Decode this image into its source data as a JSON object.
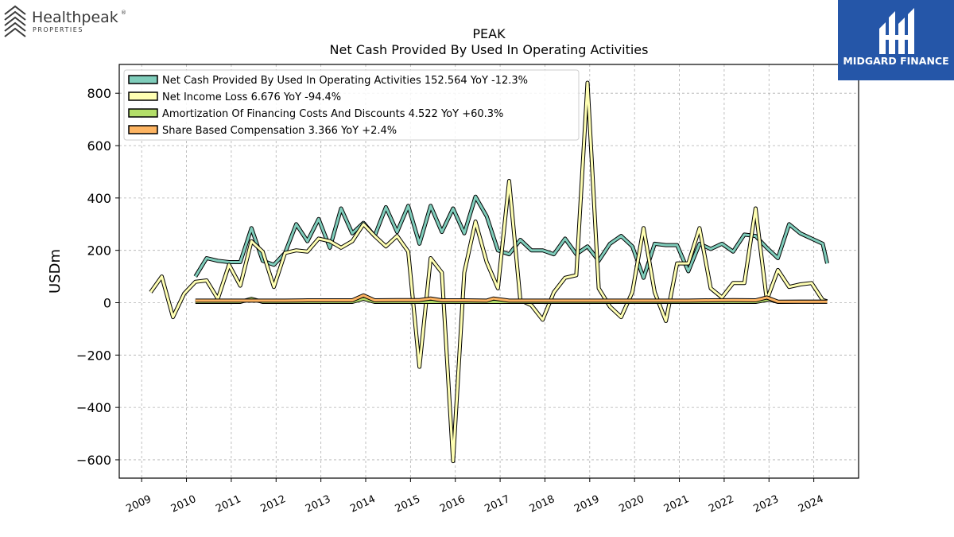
{
  "branding": {
    "left_logo_name": "Healthpeak",
    "left_logo_registered": "®",
    "left_logo_sub": "PROPERTIES",
    "right_logo_name": "MIDGARD FINANCE",
    "right_logo_bg": "#2556a8"
  },
  "chart_data": {
    "type": "line",
    "title": "PEAK",
    "subtitle": "Net Cash Provided By Used In Operating Activities",
    "ylabel": "USDm",
    "xlabel": "",
    "ylim": [
      -670,
      910
    ],
    "xlim": [
      2008.5,
      2025.0
    ],
    "yticks": [
      -600,
      -400,
      -200,
      0,
      200,
      400,
      600,
      800
    ],
    "ytick_labels": [
      "−600",
      "−400",
      "−200",
      "0",
      "200",
      "400",
      "600",
      "800"
    ],
    "xticks": [
      2009,
      2010,
      2011,
      2012,
      2013,
      2014,
      2015,
      2016,
      2017,
      2018,
      2019,
      2020,
      2021,
      2022,
      2023,
      2024
    ],
    "xtick_labels": [
      "2009",
      "2010",
      "2011",
      "2012",
      "2013",
      "2014",
      "2015",
      "2016",
      "2017",
      "2018",
      "2019",
      "2020",
      "2021",
      "2022",
      "2023",
      "2024"
    ],
    "grid": true,
    "legend_position": "top-left",
    "series": [
      {
        "name": "Net Cash Provided By Used In Operating Activities",
        "legend": "Net Cash Provided By Used In Operating Activities  152.564 YoY -12.3%",
        "color": "#7fcdbb",
        "x": [
          2010.2,
          2010.45,
          2010.7,
          2010.95,
          2011.2,
          2011.45,
          2011.7,
          2011.95,
          2012.2,
          2012.45,
          2012.7,
          2012.95,
          2013.2,
          2013.45,
          2013.7,
          2013.95,
          2014.2,
          2014.45,
          2014.7,
          2014.95,
          2015.2,
          2015.45,
          2015.7,
          2015.95,
          2016.2,
          2016.45,
          2016.7,
          2016.95,
          2017.2,
          2017.45,
          2017.7,
          2017.95,
          2018.2,
          2018.45,
          2018.7,
          2018.95,
          2019.2,
          2019.45,
          2019.7,
          2019.95,
          2020.2,
          2020.45,
          2020.7,
          2020.95,
          2021.2,
          2021.45,
          2021.7,
          2021.95,
          2022.2,
          2022.45,
          2022.7,
          2022.95,
          2023.2,
          2023.45,
          2023.7,
          2023.95,
          2024.2,
          2024.3
        ],
        "values": [
          100,
          170,
          160,
          155,
          155,
          285,
          160,
          145,
          190,
          300,
          235,
          320,
          210,
          360,
          265,
          305,
          255,
          365,
          270,
          370,
          225,
          370,
          270,
          360,
          265,
          405,
          330,
          200,
          185,
          240,
          200,
          200,
          185,
          245,
          185,
          215,
          160,
          225,
          255,
          215,
          95,
          225,
          220,
          220,
          120,
          225,
          205,
          225,
          195,
          260,
          255,
          210,
          170,
          300,
          265,
          245,
          225,
          150
        ]
      },
      {
        "name": "Net Income Loss",
        "legend": "Net Income Loss  6.676 YoY -94.4%",
        "color": "#ffffb3",
        "x": [
          2009.2,
          2009.45,
          2009.7,
          2009.95,
          2010.2,
          2010.45,
          2010.7,
          2010.95,
          2011.2,
          2011.45,
          2011.7,
          2011.95,
          2012.2,
          2012.45,
          2012.7,
          2012.95,
          2013.2,
          2013.45,
          2013.7,
          2013.95,
          2014.2,
          2014.45,
          2014.7,
          2014.95,
          2015.2,
          2015.45,
          2015.7,
          2015.95,
          2016.2,
          2016.45,
          2016.7,
          2016.95,
          2017.2,
          2017.45,
          2017.7,
          2017.95,
          2018.2,
          2018.45,
          2018.7,
          2018.95,
          2019.2,
          2019.45,
          2019.7,
          2019.95,
          2020.2,
          2020.45,
          2020.7,
          2020.95,
          2021.2,
          2021.45,
          2021.7,
          2021.95,
          2022.2,
          2022.45,
          2022.7,
          2022.95,
          2023.2,
          2023.45,
          2023.7,
          2023.95,
          2024.2,
          2024.3
        ],
        "values": [
          40,
          100,
          -55,
          35,
          80,
          85,
          15,
          145,
          65,
          235,
          195,
          60,
          190,
          200,
          195,
          245,
          235,
          210,
          235,
          300,
          255,
          215,
          255,
          195,
          -245,
          170,
          115,
          -605,
          115,
          310,
          155,
          55,
          465,
          10,
          -10,
          -65,
          40,
          95,
          105,
          840,
          55,
          -15,
          -55,
          40,
          285,
          40,
          -70,
          150,
          150,
          285,
          55,
          20,
          75,
          75,
          360,
          10,
          125,
          60,
          70,
          75,
          10,
          5
        ]
      },
      {
        "name": "Amortization Of Financing Costs And Discounts",
        "legend": "Amortization Of Financing Costs And Discounts  4.522 YoY +60.3%",
        "color": "#b3de69",
        "x": [
          2010.2,
          2010.7,
          2011.2,
          2011.45,
          2011.7,
          2012.2,
          2012.7,
          2013.2,
          2013.45,
          2013.7,
          2013.95,
          2014.2,
          2014.7,
          2015.2,
          2015.7,
          2016.2,
          2016.7,
          2017.2,
          2017.7,
          2018.2,
          2018.7,
          2019.2,
          2019.7,
          2020.2,
          2020.7,
          2021.2,
          2021.7,
          2022.2,
          2022.7,
          2023.0,
          2023.2,
          2023.7,
          2024.2,
          2024.3
        ],
        "values": [
          3,
          3,
          3,
          15,
          3,
          3,
          3,
          3,
          3,
          3,
          15,
          3,
          3,
          3,
          3,
          3,
          3,
          3,
          3,
          3,
          3,
          3,
          3,
          3,
          3,
          3,
          3,
          3,
          3,
          12,
          3,
          4,
          4,
          4
        ]
      },
      {
        "name": "Share Based Compensation",
        "legend": "Share Based Compensation  3.366 YoY +2.4%",
        "color": "#fdb462",
        "x": [
          2010.2,
          2010.7,
          2011.2,
          2011.7,
          2012.2,
          2012.7,
          2013.2,
          2013.7,
          2013.95,
          2014.2,
          2014.7,
          2015.2,
          2015.45,
          2015.7,
          2016.2,
          2016.7,
          2016.85,
          2017.2,
          2017.7,
          2018.2,
          2018.7,
          2019.2,
          2019.7,
          2020.2,
          2020.7,
          2021.2,
          2021.7,
          2022.2,
          2022.7,
          2022.95,
          2023.2,
          2023.7,
          2024.2,
          2024.3
        ],
        "values": [
          8,
          8,
          8,
          8,
          8,
          9,
          9,
          9,
          28,
          9,
          10,
          10,
          16,
          9,
          9,
          8,
          16,
          8,
          8,
          8,
          8,
          8,
          8,
          8,
          8,
          8,
          9,
          10,
          9,
          20,
          4,
          4,
          4,
          4
        ]
      }
    ]
  }
}
